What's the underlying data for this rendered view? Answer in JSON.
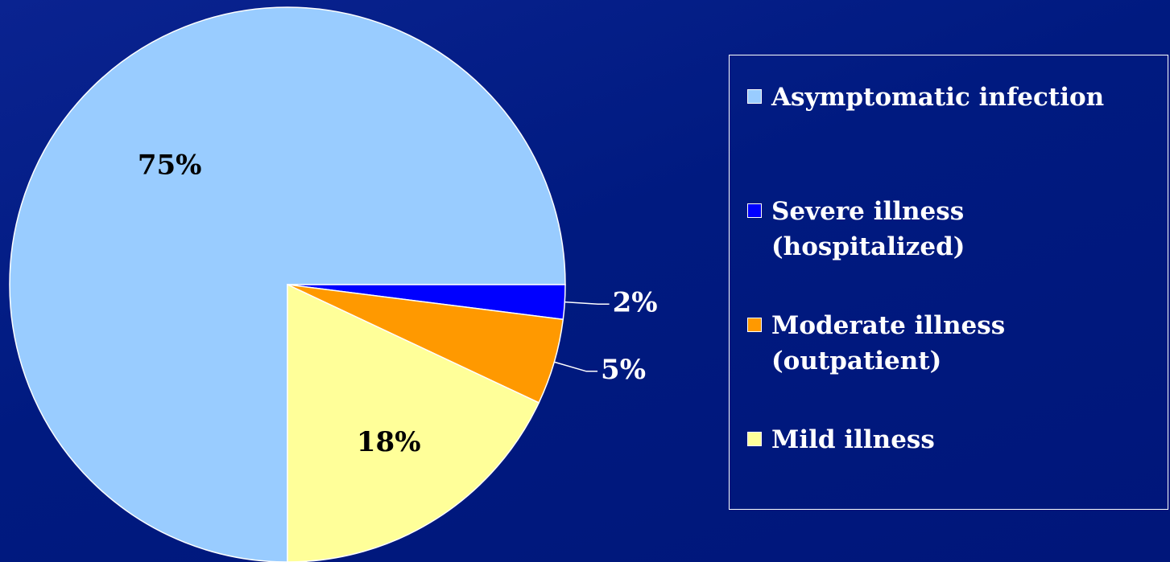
{
  "chart_data": {
    "type": "pie",
    "categories": [
      "Asymptomatic infection",
      "Severe illness\n(hospitalized)",
      "Moderate illness\n(outpatient)",
      "Mild illness"
    ],
    "values": [
      75,
      2,
      5,
      18
    ],
    "value_labels": [
      "75%",
      "2%",
      "5%",
      "18%"
    ],
    "colors": [
      "#99ccff",
      "#0000ff",
      "#ff9900",
      "#ffff99"
    ],
    "legend": "right"
  }
}
